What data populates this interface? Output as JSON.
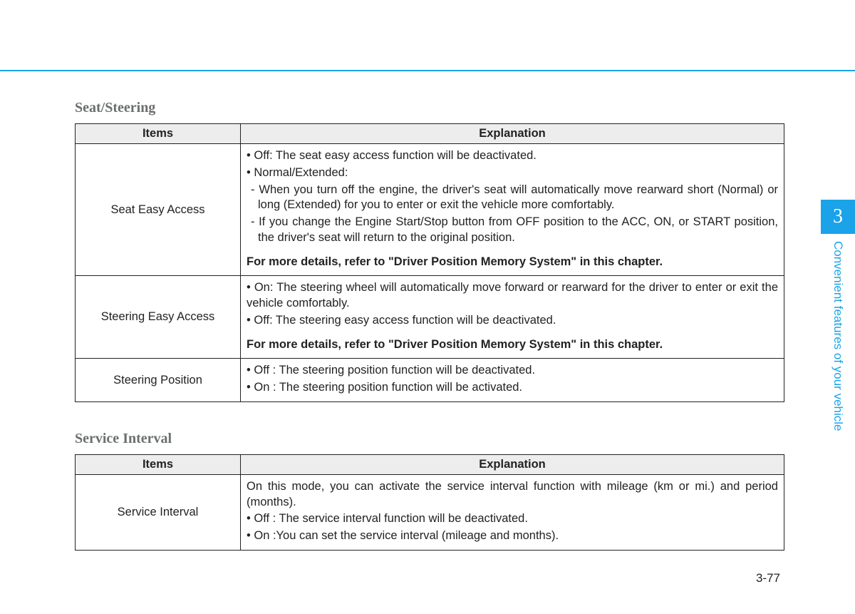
{
  "colors": {
    "accent": "#1aa3e8",
    "heading": "#6a6e6e",
    "text": "#222222",
    "header_bg": "#ededed",
    "border": "#222222",
    "page_bg": "#ffffff"
  },
  "typography": {
    "body_font": "Arial, Helvetica, sans-serif",
    "heading_font": "Georgia, 'Times New Roman', serif",
    "heading_size_pt": 15,
    "body_size_pt": 12
  },
  "side": {
    "chapter_number": "3",
    "chapter_label": "Convenient features of your vehicle"
  },
  "page_number": "3-77",
  "sections": [
    {
      "heading": "Seat/Steering",
      "columns": [
        "Items",
        "Explanation"
      ],
      "rows": [
        {
          "item": "Seat Easy Access",
          "lines": [
            {
              "text": "• Off: The seat easy access function will be deactivated."
            },
            {
              "text": "• Normal/Extended:"
            },
            {
              "text": "- When you turn off the engine, the driver's seat will automatically move rearward short (Normal) or long (Extended) for you to enter or exit the vehicle more comfortably.",
              "indent": true
            },
            {
              "text": "- If you change the Engine Start/Stop button from OFF position to the ACC, ON, or START position, the driver's seat will return to the original position.",
              "indent": true
            },
            {
              "text": "For more details, refer to \"Driver Position Memory System\" in this chapter.",
              "bold": true,
              "gap_before": true
            }
          ],
          "justify": true
        },
        {
          "item": "Steering Easy Access",
          "lines": [
            {
              "text": "• On: The steering wheel will automatically move forward or rearward for the driver to enter or exit the vehicle comfortably.",
              "justify_line": true
            },
            {
              "text": "• Off: The steering easy access function will be deactivated."
            },
            {
              "text": "For more details, refer to \"Driver Position Memory System\" in this chapter.",
              "bold": true,
              "gap_before": true
            }
          ]
        },
        {
          "item": "Steering Position",
          "lines": [
            {
              "text": "• Off : The steering position function will be deactivated."
            },
            {
              "text": "• On : The steering position function will be activated."
            }
          ]
        }
      ]
    },
    {
      "heading": "Service Interval",
      "columns": [
        "Items",
        "Explanation"
      ],
      "rows": [
        {
          "item": "Service Interval",
          "lines": [
            {
              "text": "On this mode, you can activate the service interval function with mileage (km or mi.) and period (months).",
              "justify_line": true
            },
            {
              "text": "• Off : The service interval function will be deactivated."
            },
            {
              "text": "• On :You can set the service interval (mileage and months)."
            }
          ]
        }
      ]
    }
  ]
}
